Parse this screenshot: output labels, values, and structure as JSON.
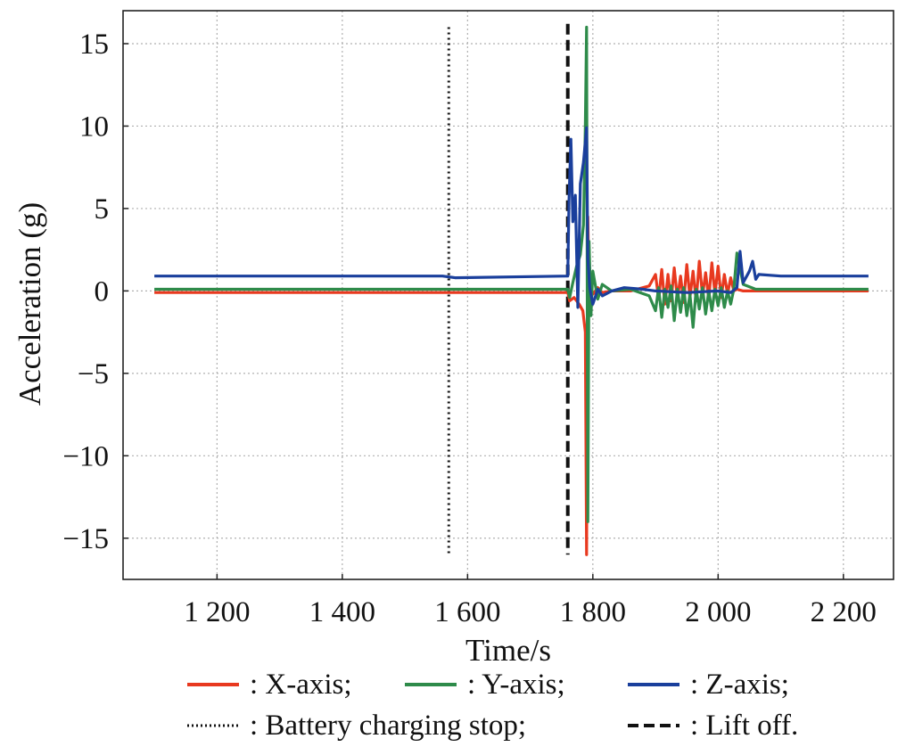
{
  "chart_data": {
    "type": "line",
    "xlabel": "Time/s",
    "ylabel": "Acceleration (g)",
    "xlim": [
      1050,
      2280
    ],
    "ylim": [
      -17.5,
      17
    ],
    "x_ticks": [
      1200,
      1400,
      1600,
      1800,
      2000,
      2200
    ],
    "x_tick_labels": [
      "1 200",
      "1 400",
      "1 600",
      "1 800",
      "2 000",
      "2 200"
    ],
    "y_ticks": [
      15,
      10,
      5,
      0,
      -5,
      -10,
      -15
    ],
    "y_tick_labels": [
      "15",
      "10",
      "5",
      "0",
      "−5",
      "−10",
      "−15"
    ],
    "grid": true,
    "legend_placement": "bottom",
    "series": [
      {
        "name": ": X-axis;",
        "color": "#e8391f",
        "x": [
          1100,
          1760,
          1763,
          1770,
          1778,
          1784,
          1788,
          1790,
          1792,
          1794,
          1797,
          1800,
          1808,
          1815,
          1830,
          1860,
          1890,
          1900,
          1905,
          1910,
          1915,
          1920,
          1925,
          1930,
          1935,
          1940,
          1945,
          1950,
          1955,
          1960,
          1965,
          1970,
          1975,
          1980,
          1985,
          1990,
          1995,
          2000,
          2005,
          2010,
          2015,
          2020,
          2025,
          2030,
          2040,
          2060,
          2100,
          2240
        ],
        "y": [
          -0.1,
          -0.1,
          -0.6,
          -0.4,
          -0.8,
          -1.2,
          -2.5,
          -16,
          4.5,
          -0.5,
          0.3,
          -0.2,
          0.2,
          -0.1,
          0,
          0,
          0.3,
          1.0,
          -0.5,
          1.3,
          -0.8,
          1.0,
          -0.6,
          1.4,
          -0.5,
          0.9,
          -0.7,
          1.6,
          -0.4,
          1.2,
          -0.6,
          1.8,
          -0.3,
          1.1,
          -0.5,
          1.7,
          -0.2,
          1.5,
          -0.4,
          1.0,
          -0.2,
          0.8,
          0,
          0.1,
          0,
          0,
          0,
          0
        ]
      },
      {
        "name": ": Y-axis;",
        "color": "#2e8b4a",
        "x": [
          1100,
          1760,
          1763,
          1768,
          1774,
          1780,
          1785,
          1788,
          1790,
          1792,
          1794,
          1797,
          1800,
          1808,
          1815,
          1830,
          1860,
          1890,
          1900,
          1905,
          1910,
          1915,
          1920,
          1925,
          1930,
          1935,
          1940,
          1945,
          1950,
          1955,
          1960,
          1965,
          1970,
          1975,
          1980,
          1985,
          1990,
          1995,
          2000,
          2005,
          2010,
          2015,
          2020,
          2025,
          2030,
          2040,
          2060,
          2100,
          2240
        ],
        "y": [
          0.1,
          0.1,
          -0.4,
          0.5,
          1.5,
          2.2,
          4,
          10,
          16,
          -14,
          3,
          -1.5,
          1.2,
          -0.5,
          0.4,
          0,
          0.1,
          -0.3,
          -1.2,
          0.2,
          -1.6,
          0.1,
          -1.0,
          0.3,
          -1.8,
          0.1,
          -1.3,
          0.2,
          -1.5,
          -0.2,
          -2.2,
          0.1,
          -1.1,
          0.2,
          -1.4,
          0,
          -1.2,
          0.1,
          -0.9,
          0.2,
          -1.0,
          0,
          -0.8,
          0.1,
          2.3,
          0.4,
          0.1,
          0.1,
          0.1
        ]
      },
      {
        "name": ": Z-axis;",
        "color": "#1a3f9c",
        "x": [
          1100,
          1560,
          1580,
          1760,
          1762,
          1765,
          1768,
          1772,
          1776,
          1780,
          1785,
          1790,
          1792,
          1795,
          1800,
          1808,
          1815,
          1830,
          1850,
          1880,
          1900,
          1950,
          2000,
          2020,
          2030,
          2035,
          2040,
          2050,
          2055,
          2060,
          2065,
          2100,
          2240
        ],
        "y": [
          0.9,
          0.9,
          0.8,
          0.9,
          5.5,
          9.2,
          4.2,
          5.8,
          -1.0,
          6.5,
          7.8,
          9.9,
          2.0,
          0.2,
          -0.8,
          0.1,
          -0.3,
          0,
          0.2,
          0.1,
          0,
          -0.1,
          0,
          -0.1,
          0.2,
          2.4,
          0.5,
          1.2,
          1.8,
          0.7,
          1.0,
          0.9,
          0.9
        ]
      }
    ],
    "markers": [
      {
        "name": ": Battery charging stop;",
        "x": 1570,
        "style": "dotted",
        "y_range": [
          -16,
          16
        ]
      },
      {
        "name": ": Lift off.",
        "x": 1760,
        "style": "dashed",
        "y_range": [
          -16,
          16.2
        ]
      }
    ]
  }
}
